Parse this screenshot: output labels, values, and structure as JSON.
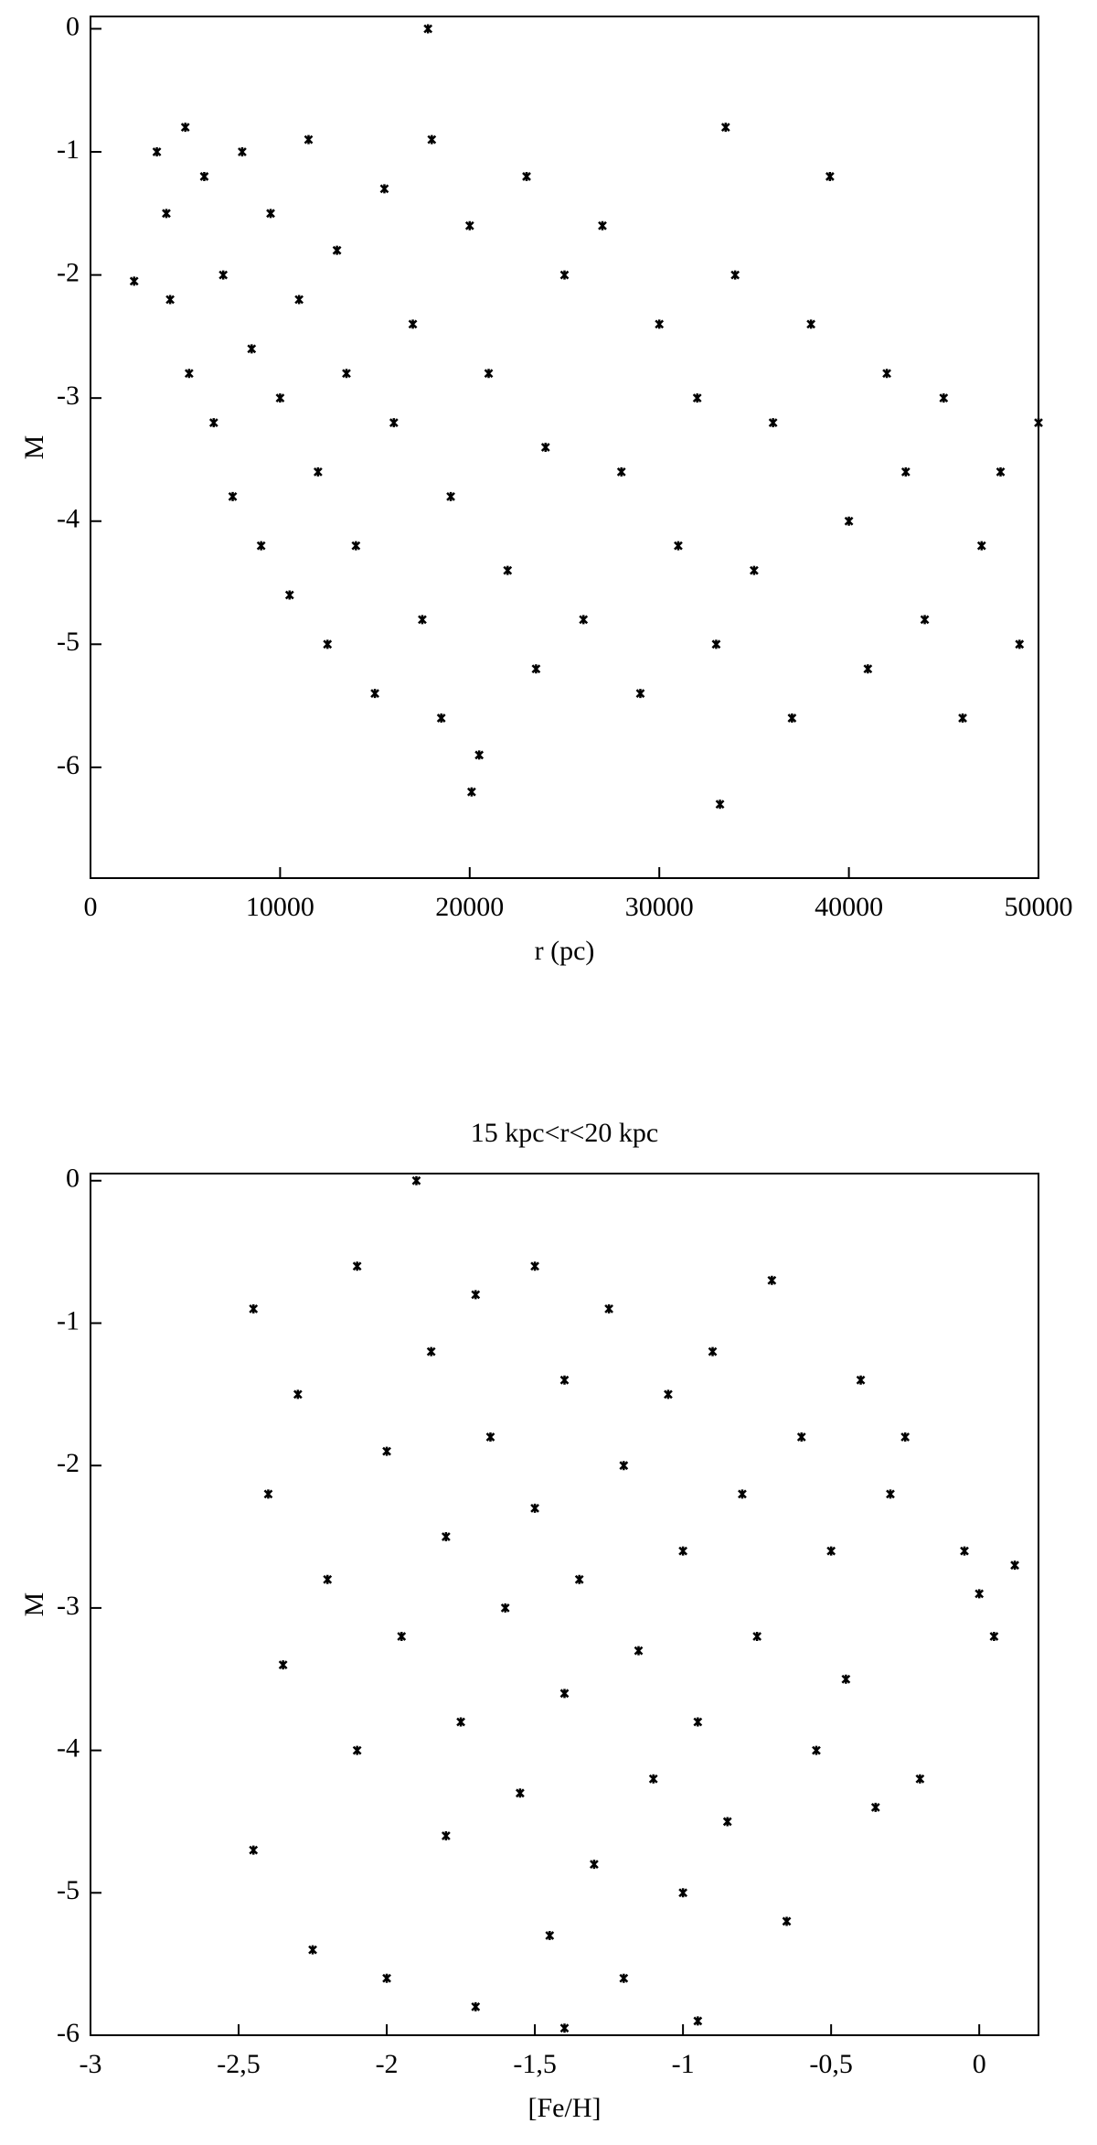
{
  "chart_data": [
    {
      "type": "scatter",
      "xlabel": "r (pc)",
      "ylabel": "M",
      "color": "#000000",
      "xlim": [
        0,
        50000
      ],
      "ylim": [
        -6.9,
        0.1
      ],
      "xticks": [
        0,
        10000,
        20000,
        30000,
        40000,
        50000
      ],
      "yticks": [
        0,
        -1,
        -2,
        -3,
        -4,
        -5,
        -6
      ],
      "x": [
        3500,
        4000,
        4200,
        5000,
        5200,
        6000,
        6500,
        7000,
        7500,
        8000,
        8500,
        9000,
        9500,
        10000,
        10500,
        11000,
        11500,
        12000,
        12500,
        13000,
        13500,
        14000,
        15000,
        15500,
        16000,
        17000,
        17500,
        18000,
        18500,
        19000,
        20000,
        20500,
        21000,
        22000,
        23000,
        23500,
        24000,
        25000,
        26000,
        27000,
        28000,
        29000,
        30000,
        31000,
        32000,
        33000,
        33500,
        34000,
        35000,
        36000,
        37000,
        38000,
        39000,
        40000,
        41000,
        42000,
        43000,
        44000,
        45000,
        46000,
        47000,
        48000,
        49000,
        50000,
        17800,
        2300,
        33200,
        20100
      ],
      "y": [
        -1.0,
        -1.5,
        -2.2,
        -0.8,
        -2.8,
        -1.2,
        -3.2,
        -2.0,
        -3.8,
        -1.0,
        -2.6,
        -4.2,
        -1.5,
        -3.0,
        -4.6,
        -2.2,
        -0.9,
        -3.6,
        -5.0,
        -1.8,
        -2.8,
        -4.2,
        -5.4,
        -1.3,
        -3.2,
        -2.4,
        -4.8,
        -0.9,
        -5.6,
        -3.8,
        -1.6,
        -5.9,
        -2.8,
        -4.4,
        -1.2,
        -5.2,
        -3.4,
        -2.0,
        -4.8,
        -1.6,
        -3.6,
        -5.4,
        -2.4,
        -4.2,
        -3.0,
        -5.0,
        -0.8,
        -2.0,
        -4.4,
        -3.2,
        -5.6,
        -2.4,
        -1.2,
        -4.0,
        -5.2,
        -2.8,
        -3.6,
        -4.8,
        -3.0,
        -5.6,
        -4.2,
        -3.6,
        -5.0,
        -3.2,
        0.0,
        -2.05,
        -6.3,
        -6.2
      ]
    },
    {
      "type": "scatter",
      "title": "15 kpc<r<20 kpc",
      "xlabel": "[Fe/H]",
      "ylabel": "M",
      "color": "#000000",
      "xlim": [
        -3,
        0.2
      ],
      "ylim": [
        -6,
        0.05
      ],
      "xticks": [
        -3,
        {
          "value": -2.5,
          "label": "-2,5"
        },
        -2,
        {
          "value": -1.5,
          "label": "-1,5"
        },
        -1,
        {
          "value": -0.5,
          "label": "-0,5"
        },
        0
      ],
      "yticks": [
        0,
        -1,
        -2,
        -3,
        -4,
        -5,
        -6
      ],
      "x": [
        -2.45,
        -2.45,
        -2.4,
        -2.35,
        -2.3,
        -2.25,
        -2.2,
        -2.1,
        -2.1,
        -2.0,
        -2.0,
        -1.95,
        -1.9,
        -1.85,
        -1.8,
        -1.8,
        -1.75,
        -1.7,
        -1.7,
        -1.65,
        -1.6,
        -1.55,
        -1.5,
        -1.5,
        -1.45,
        -1.4,
        -1.4,
        -1.35,
        -1.3,
        -1.25,
        -1.2,
        -1.2,
        -1.15,
        -1.1,
        -1.05,
        -1.0,
        -1.0,
        -0.95,
        -0.9,
        -0.85,
        -0.8,
        -0.75,
        -0.7,
        -0.65,
        -0.6,
        -0.55,
        -0.5,
        -0.45,
        -0.4,
        -0.35,
        -0.3,
        -0.25,
        -0.2,
        -0.05,
        0.0,
        0.05,
        0.12,
        -0.95,
        -1.4
      ],
      "y": [
        -0.9,
        -4.7,
        -2.2,
        -3.4,
        -1.5,
        -5.4,
        -2.8,
        -0.6,
        -4.0,
        -1.9,
        -5.6,
        -3.2,
        0.0,
        -1.2,
        -4.6,
        -2.5,
        -3.8,
        -0.8,
        -5.8,
        -1.8,
        -3.0,
        -4.3,
        -0.6,
        -2.3,
        -5.3,
        -1.4,
        -3.6,
        -2.8,
        -4.8,
        -0.9,
        -2.0,
        -5.6,
        -3.3,
        -4.2,
        -1.5,
        -2.6,
        -5.0,
        -3.8,
        -1.2,
        -4.5,
        -2.2,
        -3.2,
        -0.7,
        -5.2,
        -1.8,
        -4.0,
        -2.6,
        -3.5,
        -1.4,
        -4.4,
        -2.2,
        -1.8,
        -4.2,
        -2.6,
        -2.9,
        -3.2,
        -2.7,
        -5.9,
        -5.95
      ]
    }
  ]
}
